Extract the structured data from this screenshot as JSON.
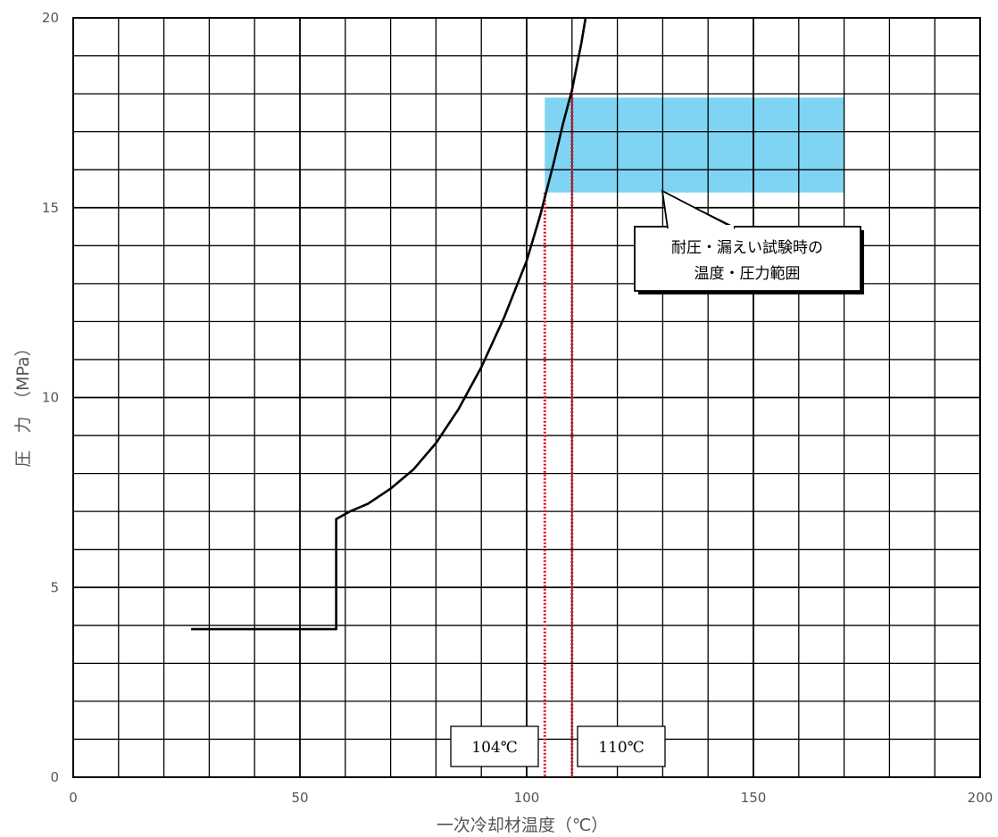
{
  "chart_data": {
    "type": "line",
    "xlabel": "一次冷却材温度（℃）",
    "ylabel": "圧　力　（MPa）",
    "xlim": [
      0,
      200
    ],
    "ylim": [
      0,
      20
    ],
    "x_ticks": [
      0,
      50,
      100,
      150,
      200
    ],
    "y_ticks": [
      0,
      5,
      10,
      15,
      20
    ],
    "x_minor_step": 10,
    "y_minor_step": 1,
    "grid": true,
    "series": [
      {
        "values": [
          [
            26,
            3.9
          ],
          [
            58,
            3.9
          ],
          [
            58,
            6.8
          ],
          [
            61,
            7.0
          ],
          [
            65,
            7.2
          ],
          [
            70,
            7.6
          ],
          [
            75,
            8.1
          ],
          [
            80,
            8.8
          ],
          [
            85,
            9.7
          ],
          [
            90,
            10.8
          ],
          [
            95,
            12.1
          ],
          [
            100,
            13.6
          ],
          [
            103,
            14.8
          ],
          [
            106,
            16.2
          ],
          [
            108,
            17.2
          ],
          [
            110,
            18.1
          ],
          [
            112,
            19.3
          ],
          [
            113,
            20.0
          ]
        ],
        "color": "#000000"
      }
    ],
    "region": {
      "x": [
        104,
        170
      ],
      "y": [
        15.4,
        17.9
      ],
      "color": "#7fd4f3"
    },
    "vertical_lines": [
      {
        "x": 104,
        "color": "#e0102a"
      },
      {
        "x": 110,
        "color": "#e0102a"
      }
    ],
    "annotations": [
      {
        "text": "104℃"
      },
      {
        "text": "110℃"
      },
      {
        "lines": [
          "耐圧・漏えい試験時の",
          "温度・圧力範囲"
        ]
      }
    ]
  }
}
